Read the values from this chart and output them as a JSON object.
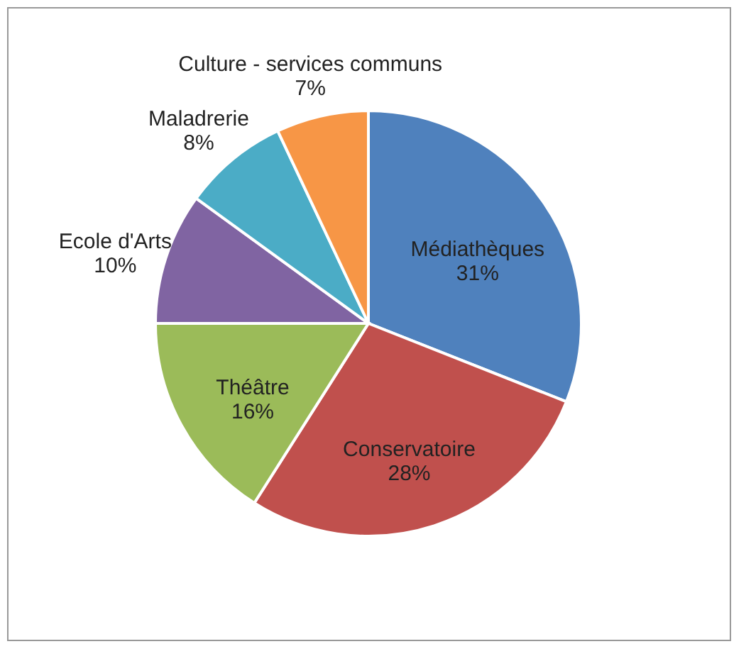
{
  "chart_data": {
    "type": "pie",
    "categories": [
      "Médiathèques",
      "Conservatoire",
      "Théâtre",
      "Ecole d'Arts",
      "Maladrerie",
      "Culture - services communs"
    ],
    "values": [
      31,
      28,
      16,
      10,
      8,
      7
    ],
    "colors": [
      "#4f81bd",
      "#c0504d",
      "#9bbb59",
      "#8064a2",
      "#4bacc6",
      "#f79646"
    ],
    "value_labels": [
      "31%",
      "28%",
      "16%",
      "10%",
      "8%",
      "7%"
    ]
  }
}
